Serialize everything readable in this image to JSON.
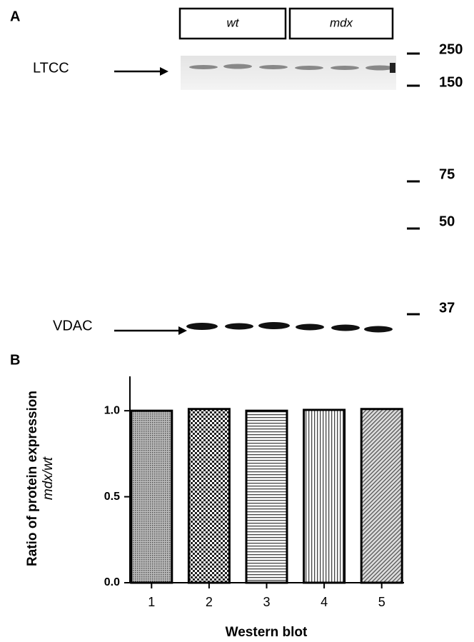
{
  "panel_a": {
    "label": "A",
    "groups": [
      "wt",
      "mdx"
    ],
    "bands": [
      "LTCC",
      "VDAC"
    ],
    "markers": [
      "250",
      "150",
      "75",
      "50",
      "37"
    ]
  },
  "chart_data": {
    "type": "bar",
    "panel_label": "B",
    "y_label": "Ratio of protein expression",
    "y_label_sub": "mdx/wt",
    "x_label": "Western blot",
    "categories": [
      "1",
      "2",
      "3",
      "4",
      "5"
    ],
    "values": [
      1.0,
      1.01,
      1.0,
      1.005,
      1.01
    ],
    "color": "#000000",
    "ylim": [
      0,
      1.2
    ],
    "yticks": [
      {
        "value": 0,
        "label": "0.0"
      },
      {
        "value": 0.5,
        "label": "0.5"
      },
      {
        "value": 1,
        "label": "1.0"
      }
    ]
  }
}
